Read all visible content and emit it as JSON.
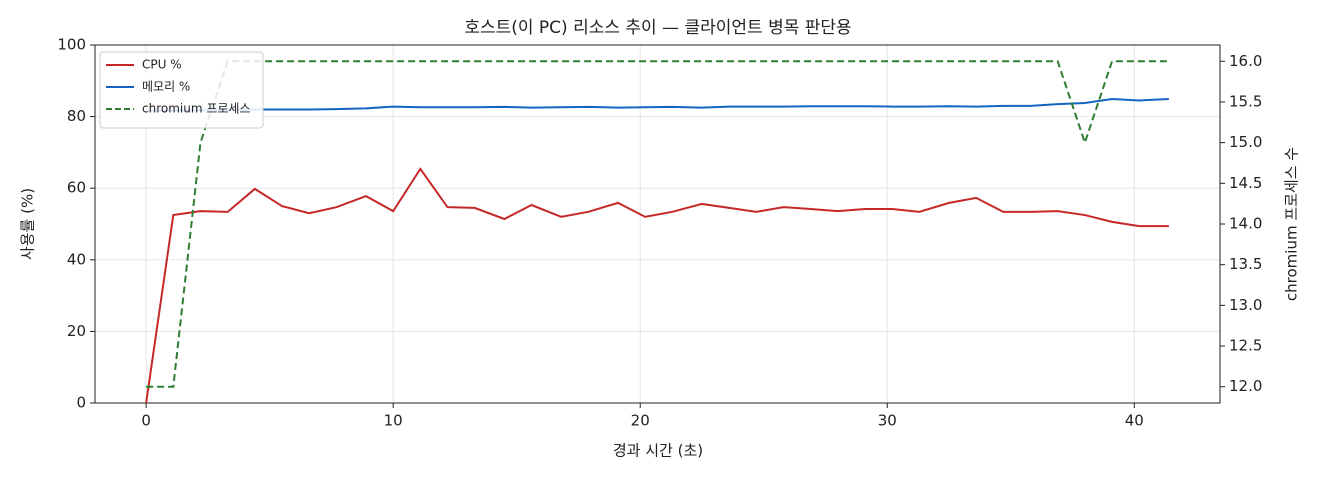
{
  "chart_data": {
    "type": "line",
    "title": "호스트(이 PC) 리소스 추이 — 클라이언트 병목 판단용",
    "x_label": "경과 시간 (초)",
    "y_label": "사용률 (%)",
    "y2_label": "chromium 프로세스 수",
    "x": [
      0,
      1.1,
      2.2,
      3.3,
      4.4,
      5.5,
      6.6,
      7.7,
      8.9,
      10.0,
      11.1,
      12.2,
      13.3,
      14.5,
      15.6,
      16.8,
      17.9,
      19.1,
      20.2,
      21.3,
      22.5,
      23.6,
      24.7,
      25.8,
      26.9,
      28.0,
      29.1,
      30.2,
      31.3,
      32.5,
      33.6,
      34.7,
      35.8,
      36.9,
      38.0,
      39.1,
      40.2,
      41.4
    ],
    "series": [
      {
        "name": "CPU %",
        "color": "#c62828",
        "linestyle": "solid",
        "values": [
          0,
          52.5,
          53.6,
          53.4,
          59.8,
          55,
          53,
          54.7,
          57.8,
          53.6,
          65.4,
          54.7,
          54.5,
          51.4,
          55.3,
          52,
          53.4,
          55.9,
          52,
          53.4,
          55.6,
          54.5,
          53.4,
          54.7,
          54.2,
          53.6,
          54.2,
          54.2,
          53.4,
          55.9,
          57.3,
          53.4,
          53.4,
          53.6,
          52.5,
          50.6,
          49.4,
          49.4
        ]
      },
      {
        "name": "메모리 %",
        "color": "#1565c0",
        "linestyle": "solid",
        "values": [
          81.6,
          81.7,
          81.8,
          81.9,
          82.0,
          82.0,
          82.0,
          82.1,
          82.3,
          82.8,
          82.6,
          82.6,
          82.6,
          82.7,
          82.5,
          82.6,
          82.7,
          82.5,
          82.6,
          82.7,
          82.5,
          82.8,
          82.8,
          82.8,
          82.9,
          82.9,
          82.9,
          82.8,
          82.8,
          82.9,
          82.8,
          83.0,
          83.0,
          83.5,
          83.8,
          84.9,
          84.5,
          84.9
        ]
      },
      {
        "name": "chromium 프로세스",
        "color": "#2e7d32",
        "linestyle": "dashed",
        "axis": "y2",
        "values": [
          12,
          12,
          15,
          16,
          16,
          16,
          16,
          16,
          16,
          16,
          16,
          16,
          16,
          16,
          16,
          16,
          16,
          16,
          16,
          16,
          16,
          16,
          16,
          16,
          16,
          16,
          16,
          16,
          16,
          16,
          16,
          16,
          16,
          16,
          15,
          16,
          16,
          16
        ]
      }
    ],
    "xlim": [
      -2.07,
      43.47
    ],
    "xticks": [
      0,
      10,
      20,
      30,
      40
    ],
    "ylim": [
      0,
      100
    ],
    "yticks": [
      0,
      20,
      40,
      60,
      80,
      100
    ],
    "y2lim": [
      11.8,
      16.2
    ],
    "y2ticks": [
      {
        "value": 12,
        "label": "12.0"
      },
      12.5,
      {
        "value": 13,
        "label": "13.0"
      },
      13.5,
      {
        "value": 14,
        "label": "14.0"
      },
      14.5,
      {
        "value": 15,
        "label": "15.0"
      },
      15.5,
      {
        "value": 16,
        "label": "16.0"
      }
    ],
    "grid": true,
    "legend": "upper left"
  }
}
